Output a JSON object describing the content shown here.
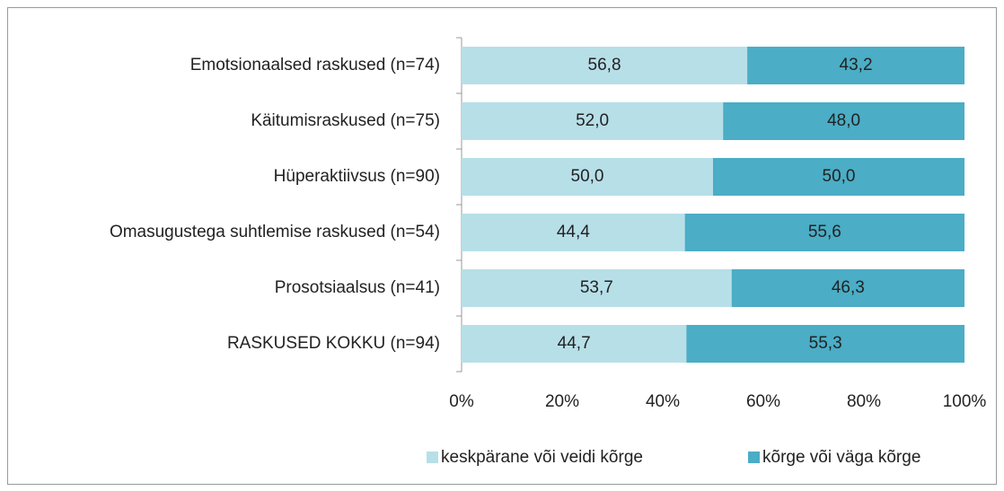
{
  "chart_data": {
    "type": "stacked_bar_horizontal",
    "categories": [
      "Emotsionaalsed raskused (n=74)",
      "Käitumisraskused (n=75)",
      "Hüperaktiivsus (n=90)",
      "Omasugustega suhtlemise raskused (n=54)",
      "Prosotsiaalsus (n=41)",
      "RASKUSED KOKKU (n=94)"
    ],
    "series": [
      {
        "name": "keskpärane või veidi kõrge",
        "color": "#b7dfe8",
        "values": [
          56.8,
          52.0,
          50.0,
          44.4,
          53.7,
          44.7
        ],
        "value_labels": [
          "56,8",
          "52,0",
          "50,0",
          "44,4",
          "53,7",
          "44,7"
        ]
      },
      {
        "name": "kõrge või väga kõrge",
        "color": "#4badc6",
        "values": [
          43.2,
          48.0,
          50.0,
          55.6,
          46.3,
          55.3
        ],
        "value_labels": [
          "43,2",
          "48,0",
          "50,0",
          "55,6",
          "46,3",
          "55,3"
        ]
      }
    ],
    "xlim": [
      0,
      100
    ],
    "xticks": [
      {
        "value": 0,
        "label": "0%"
      },
      {
        "value": 20,
        "label": "20%"
      },
      {
        "value": 40,
        "label": "40%"
      },
      {
        "value": 60,
        "label": "60%"
      },
      {
        "value": 80,
        "label": "80%"
      },
      {
        "value": 100,
        "label": "100%"
      }
    ],
    "legend": "bottom"
  }
}
